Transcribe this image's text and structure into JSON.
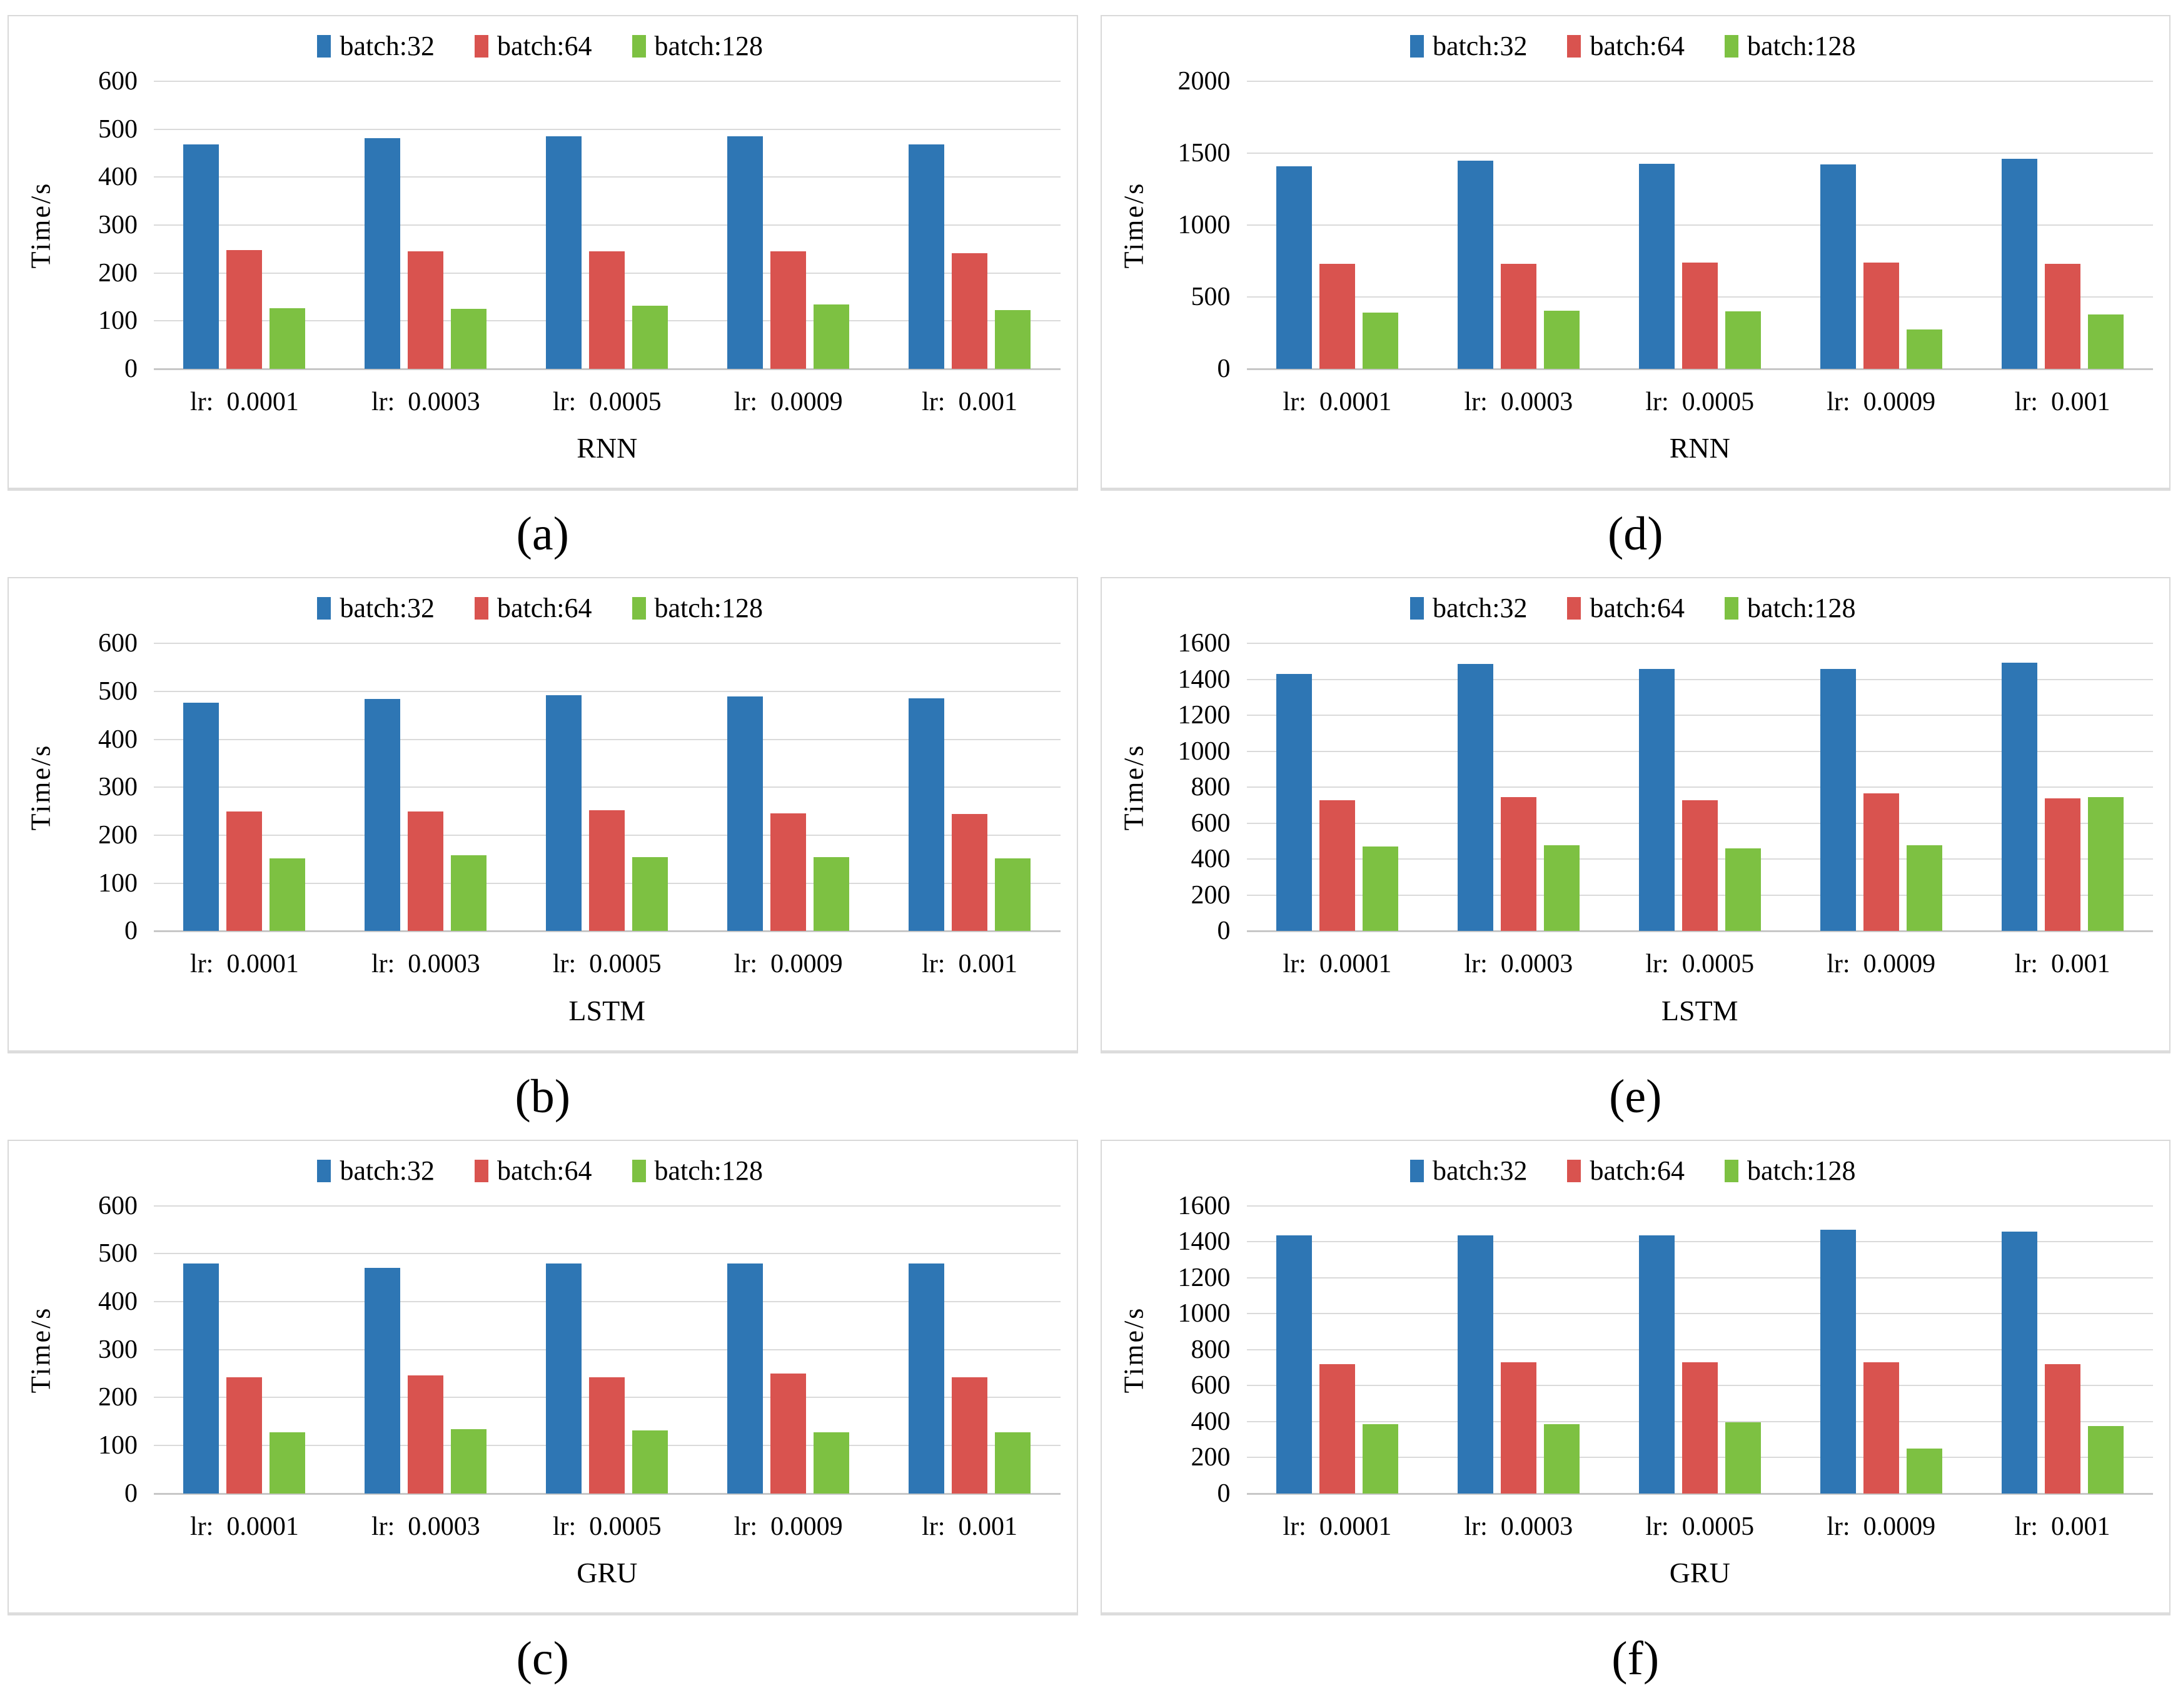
{
  "figure": {
    "description": "Training time comparison figure with six grouped bar charts"
  },
  "legend": {
    "items": [
      {
        "label": "batch:32",
        "color": "#2e76b4"
      },
      {
        "label": "batch:64",
        "color": "#d9534f"
      },
      {
        "label": "batch:128",
        "color": "#7dc142"
      }
    ]
  },
  "chart_data": [
    {
      "type": "bar",
      "caption": "(a)",
      "xlabel": "RNN",
      "ylabel": "Time/s",
      "ylim": [
        0,
        600
      ],
      "ytick_step": 100,
      "grid": true,
      "legend_position": "top-center",
      "categories": [
        "lr:  0.0001",
        "lr:  0.0003",
        "lr:  0.0005",
        "lr:  0.0009",
        "lr:  0.001"
      ],
      "series": [
        {
          "name": "batch:32",
          "values": [
            468,
            481,
            485,
            485,
            468
          ]
        },
        {
          "name": "batch:64",
          "values": [
            248,
            245,
            245,
            245,
            241
          ]
        },
        {
          "name": "batch:128",
          "values": [
            127,
            126,
            132,
            134,
            123
          ]
        }
      ]
    },
    {
      "type": "bar",
      "caption": "(d)",
      "xlabel": "RNN",
      "ylabel": "Time/s",
      "ylim": [
        0,
        2000
      ],
      "ytick_step": 500,
      "grid": true,
      "legend_position": "top-center",
      "categories": [
        "lr:  0.0001",
        "lr:  0.0003",
        "lr:  0.0005",
        "lr:  0.0009",
        "lr:  0.001"
      ],
      "series": [
        {
          "name": "batch:32",
          "values": [
            1410,
            1450,
            1425,
            1420,
            1460
          ]
        },
        {
          "name": "batch:64",
          "values": [
            730,
            730,
            740,
            740,
            730
          ]
        },
        {
          "name": "batch:128",
          "values": [
            390,
            405,
            400,
            275,
            380
          ]
        }
      ]
    },
    {
      "type": "bar",
      "caption": "(b)",
      "xlabel": "LSTM",
      "ylabel": "Time/s",
      "ylim": [
        0,
        600
      ],
      "ytick_step": 100,
      "grid": true,
      "legend_position": "top-center",
      "categories": [
        "lr:  0.0001",
        "lr:  0.0003",
        "lr:  0.0005",
        "lr:  0.0009",
        "lr:  0.001"
      ],
      "series": [
        {
          "name": "batch:32",
          "values": [
            476,
            484,
            492,
            490,
            486
          ]
        },
        {
          "name": "batch:64",
          "values": [
            250,
            250,
            252,
            246,
            245
          ]
        },
        {
          "name": "batch:128",
          "values": [
            152,
            158,
            154,
            154,
            152
          ]
        }
      ]
    },
    {
      "type": "bar",
      "caption": "(e)",
      "xlabel": "LSTM",
      "ylabel": "Time/s",
      "ylim": [
        0,
        1600
      ],
      "ytick_step": 200,
      "grid": true,
      "legend_position": "top-center",
      "categories": [
        "lr:  0.0001",
        "lr:  0.0003",
        "lr:  0.0005",
        "lr:  0.0009",
        "lr:  0.001"
      ],
      "series": [
        {
          "name": "batch:32",
          "values": [
            1430,
            1485,
            1460,
            1460,
            1495
          ]
        },
        {
          "name": "batch:64",
          "values": [
            730,
            745,
            730,
            765,
            740
          ]
        },
        {
          "name": "batch:128",
          "values": [
            472,
            477,
            462,
            477,
            745
          ]
        }
      ]
    },
    {
      "type": "bar",
      "caption": "(c)",
      "xlabel": "GRU",
      "ylabel": "Time/s",
      "ylim": [
        0,
        600
      ],
      "ytick_step": 100,
      "grid": true,
      "legend_position": "top-center",
      "categories": [
        "lr:  0.0001",
        "lr:  0.0003",
        "lr:  0.0005",
        "lr:  0.0009",
        "lr:  0.001"
      ],
      "series": [
        {
          "name": "batch:32",
          "values": [
            479,
            471,
            479,
            479,
            479
          ]
        },
        {
          "name": "batch:64",
          "values": [
            242,
            246,
            242,
            250,
            242
          ]
        },
        {
          "name": "batch:128",
          "values": [
            127,
            134,
            131,
            127,
            127
          ]
        }
      ]
    },
    {
      "type": "bar",
      "caption": "(f)",
      "xlabel": "GRU",
      "ylabel": "Time/s",
      "ylim": [
        0,
        1600
      ],
      "ytick_step": 200,
      "grid": true,
      "legend_position": "top-center",
      "categories": [
        "lr:  0.0001",
        "lr:  0.0003",
        "lr:  0.0005",
        "lr:  0.0009",
        "lr:  0.001"
      ],
      "series": [
        {
          "name": "batch:32",
          "values": [
            1435,
            1435,
            1435,
            1465,
            1455
          ]
        },
        {
          "name": "batch:64",
          "values": [
            720,
            730,
            730,
            730,
            720
          ]
        },
        {
          "name": "batch:128",
          "values": [
            385,
            385,
            395,
            250,
            375
          ]
        }
      ]
    }
  ]
}
